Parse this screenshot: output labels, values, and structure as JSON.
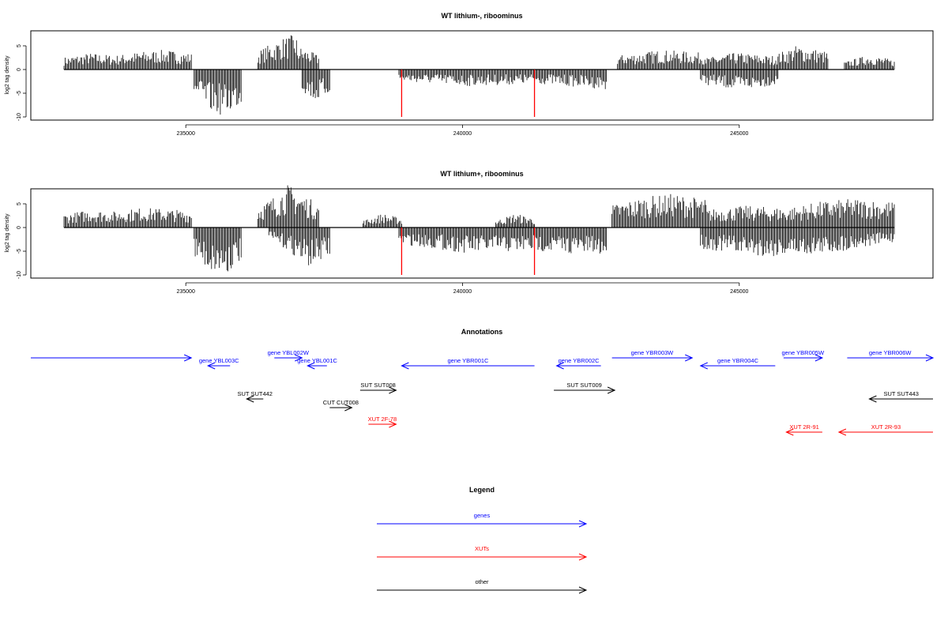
{
  "chart_data": [
    {
      "type": "bar",
      "title": "WT lithium-, riboominus",
      "xlabel": "",
      "ylabel": "log2 tag density",
      "xlim": [
        232200,
        248500
      ],
      "ylim": [
        -10,
        7.5
      ],
      "yticks": [
        "-10",
        "-5",
        "0",
        "5"
      ],
      "xticks": [
        235000,
        240000,
        245000
      ],
      "xtick_labels": [
        "235000",
        "240000",
        "245000"
      ],
      "red_markers_x": [
        238900,
        241300
      ],
      "series": [
        {
          "strand": "plus",
          "segments": [
            {
              "x": [
                232800,
                235100
              ],
              "v": [
                2.6,
                3.5,
                3.0,
                3.8,
                4.2,
                3.4
              ]
            },
            {
              "x": [
                236300,
                237000
              ],
              "v": [
                3.8,
                5.5,
                6.8,
                7.6
              ]
            },
            {
              "x": [
                237000,
                237400
              ],
              "v": [
                5.2,
                3.0
              ]
            },
            {
              "x": [
                242800,
                244400
              ],
              "v": [
                3.0,
                4.2,
                3.5
              ]
            },
            {
              "x": [
                244400,
                245500
              ],
              "v": [
                2.5,
                3.6,
                3.0
              ]
            },
            {
              "x": [
                245500,
                246600
              ],
              "v": [
                2.5,
                5.2,
                3.8
              ]
            },
            {
              "x": [
                246900,
                247800
              ],
              "v": [
                1.6,
                3.2,
                2.0
              ]
            }
          ]
        },
        {
          "strand": "minus",
          "segments": [
            {
              "x": [
                235150,
                236000
              ],
              "v": [
                -5.5,
                -9.0,
                -9.8,
                -7.5
              ]
            },
            {
              "x": [
                237100,
                237600
              ],
              "v": [
                -4.5,
                -7.0,
                -5.0
              ]
            },
            {
              "x": [
                238850,
                242600
              ],
              "v": [
                -2.5,
                -3.5,
                -3.0,
                -4.2
              ]
            },
            {
              "x": [
                244300,
                245700
              ],
              "v": [
                -3.0,
                -4.5,
                -3.2
              ]
            }
          ]
        }
      ]
    },
    {
      "type": "bar",
      "title": "WT lithium+, riboominus",
      "xlabel": "",
      "ylabel": "log2 tag density",
      "xlim": [
        232200,
        248500
      ],
      "ylim": [
        -10,
        7.5
      ],
      "yticks": [
        "-10",
        "-5",
        "0",
        "5"
      ],
      "xticks": [
        235000,
        240000,
        245000
      ],
      "xtick_labels": [
        "235000",
        "240000",
        "245000"
      ],
      "red_markers_x": [
        238900,
        241300
      ],
      "series": [
        {
          "strand": "plus",
          "segments": [
            {
              "x": [
                232800,
                235100
              ],
              "v": [
                2.8,
                3.8,
                3.4,
                4.2,
                4.0,
                3.5
              ]
            },
            {
              "x": [
                236300,
                237400
              ],
              "v": [
                4.5,
                6.5,
                9.2,
                7.0,
                5.0
              ]
            },
            {
              "x": [
                238200,
                238900
              ],
              "v": [
                1.5,
                3.0,
                2.0
              ]
            },
            {
              "x": [
                240600,
                241300
              ],
              "v": [
                1.5,
                3.0,
                2.0
              ]
            },
            {
              "x": [
                242700,
                244400
              ],
              "v": [
                4.8,
                6.5,
                7.2,
                6.0
              ]
            },
            {
              "x": [
                244400,
                245800
              ],
              "v": [
                3.8,
                4.6,
                4.2
              ]
            },
            {
              "x": [
                245800,
                247800
              ],
              "v": [
                4.0,
                5.5,
                6.2,
                5.5
              ]
            }
          ]
        },
        {
          "strand": "minus",
          "segments": [
            {
              "x": [
                235150,
                236000
              ],
              "v": [
                -6.0,
                -9.5,
                -10.0,
                -7.0
              ]
            },
            {
              "x": [
                236500,
                237600
              ],
              "v": [
                -2.5,
                -5.0,
                -8.5,
                -6.0
              ]
            },
            {
              "x": [
                238850,
                242600
              ],
              "v": [
                -3.5,
                -5.5,
                -5.0,
                -6.0
              ]
            },
            {
              "x": [
                244300,
                247800
              ],
              "v": [
                -4.5,
                -6.2,
                -5.5,
                -3.0
              ]
            }
          ]
        }
      ]
    }
  ],
  "annotations": {
    "title": "Annotations",
    "features": [
      {
        "label": "",
        "kind": "gene",
        "x1": 232200,
        "x2": 235100,
        "dir": "right",
        "row": 1
      },
      {
        "label": "gene YBL003C",
        "kind": "gene",
        "x1": 235400,
        "x2": 235800,
        "dir": "left",
        "row": 2
      },
      {
        "label": "gene YBL002W",
        "kind": "gene",
        "x1": 236600,
        "x2": 237100,
        "dir": "right",
        "row": 1
      },
      {
        "label": "gene YBL001C",
        "kind": "gene",
        "x1": 237200,
        "x2": 237550,
        "dir": "left",
        "row": 2
      },
      {
        "label": "gene YBR001C",
        "kind": "gene",
        "x1": 238900,
        "x2": 241300,
        "dir": "left",
        "row": 2
      },
      {
        "label": "gene YBR002C",
        "kind": "gene",
        "x1": 241700,
        "x2": 242500,
        "dir": "left",
        "row": 2
      },
      {
        "label": "gene YBR003W",
        "kind": "gene",
        "x1": 242700,
        "x2": 244150,
        "dir": "right",
        "row": 1
      },
      {
        "label": "gene YBR004C",
        "kind": "gene",
        "x1": 244300,
        "x2": 245650,
        "dir": "left",
        "row": 2
      },
      {
        "label": "gene YBR005W",
        "kind": "gene",
        "x1": 245800,
        "x2": 246500,
        "dir": "right",
        "row": 1
      },
      {
        "label": "gene YBR006W",
        "kind": "gene",
        "x1": 246950,
        "x2": 248500,
        "dir": "right",
        "row": 1
      },
      {
        "label": "SUT SUT442",
        "kind": "other",
        "x1": 236100,
        "x2": 236400,
        "dir": "left",
        "row": 4
      },
      {
        "label": "SUT SUT008",
        "kind": "other",
        "x1": 238150,
        "x2": 238800,
        "dir": "right",
        "row": 3
      },
      {
        "label": "CUT CUT008",
        "kind": "other",
        "x1": 237600,
        "x2": 238000,
        "dir": "right",
        "row": 5
      },
      {
        "label": "SUT SUT009",
        "kind": "other",
        "x1": 241650,
        "x2": 242750,
        "dir": "right",
        "row": 3
      },
      {
        "label": "SUT SUT443",
        "kind": "other",
        "x1": 247350,
        "x2": 248500,
        "dir": "left",
        "row": 4
      },
      {
        "label": "XUT 2F-78",
        "kind": "xut",
        "x1": 238300,
        "x2": 238800,
        "dir": "right",
        "row": 6
      },
      {
        "label": "XUT 2R-91",
        "kind": "xut",
        "x1": 245850,
        "x2": 246500,
        "dir": "left",
        "row": 7
      },
      {
        "label": "XUT 2R-93",
        "kind": "xut",
        "x1": 246800,
        "x2": 248500,
        "dir": "left",
        "row": 7
      }
    ]
  },
  "legend": {
    "title": "Legend",
    "items": [
      {
        "label": "genes",
        "color": "#0000ff"
      },
      {
        "label": "XUTs",
        "color": "#ff0000"
      },
      {
        "label": "other",
        "color": "#000000"
      }
    ]
  },
  "colors": {
    "gene": "#0000ff",
    "xut": "#ff0000",
    "other": "#000000",
    "marker": "#ff0000"
  }
}
